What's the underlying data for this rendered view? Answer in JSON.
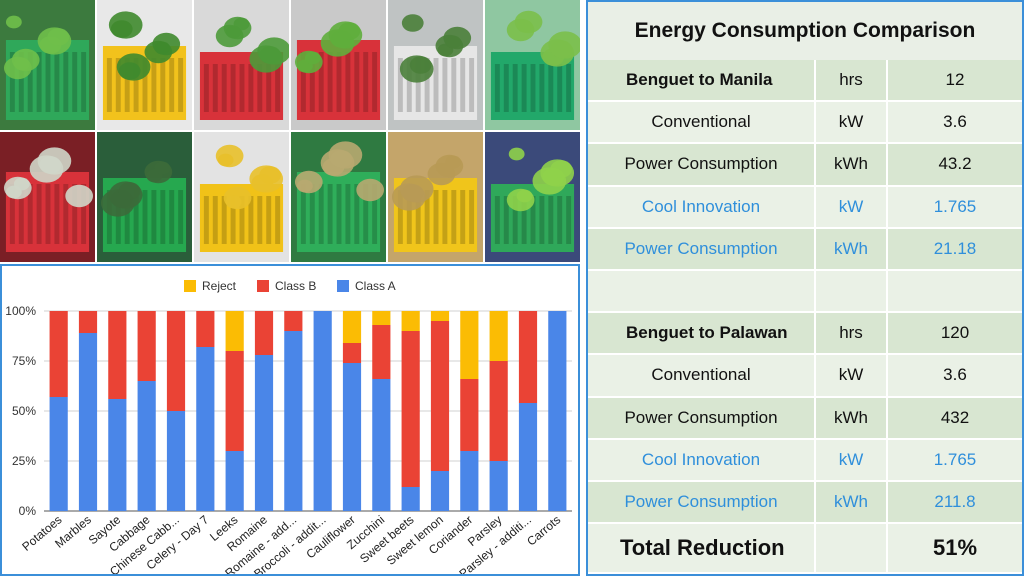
{
  "photos": [
    {
      "name": "mixed-greens",
      "bg": "#3c7a3e",
      "crate": "#2fa85a",
      "item": "#6fbf4a"
    },
    {
      "name": "leafy-in-yellow-crate",
      "bg": "#e8e8e8",
      "crate": "#f2c21c",
      "item": "#3f8a2e"
    },
    {
      "name": "greens-in-red-crate",
      "bg": "#d9d9d9",
      "crate": "#d8323a",
      "item": "#4c9a3a"
    },
    {
      "name": "wrapped-greens",
      "bg": "#c9c9c9",
      "crate": "#d8323a",
      "item": "#5fae3c"
    },
    {
      "name": "beans-in-bag",
      "bg": "#bfc3c3",
      "crate": "#e6e6e6",
      "item": "#4a7f3a"
    },
    {
      "name": "celery-green-crate",
      "bg": "#8fc7a1",
      "crate": "#22a86a",
      "item": "#7bbf4a"
    },
    {
      "name": "cabbage-red-crates",
      "bg": "#7a1f25",
      "crate": "#d8323a",
      "item": "#cfd6c9"
    },
    {
      "name": "broccoli-green-crate",
      "bg": "#2a5e3a",
      "crate": "#26a84f",
      "item": "#3c6a3a"
    },
    {
      "name": "lemons-yellow-crate",
      "bg": "#e3e3e3",
      "crate": "#f1c218",
      "item": "#e8c02a"
    },
    {
      "name": "marbles-green-crate",
      "bg": "#2f7a41",
      "crate": "#2fae5a",
      "item": "#b8a870"
    },
    {
      "name": "packed-yellow-crate",
      "bg": "#c4a56a",
      "crate": "#f0c51b",
      "item": "#b89a55"
    },
    {
      "name": "sayote-in-hand",
      "bg": "#3b4a7a",
      "crate": "#2fa85a",
      "item": "#8fd14a"
    }
  ],
  "chart_data": {
    "type": "bar",
    "stacked": true,
    "categories": [
      "Potatoes",
      "Marbles",
      "Sayote",
      "Cabbage",
      "Chinese Cabb...",
      "Celery - Day 7",
      "Leeks",
      "Romaine",
      "Romaine - add...",
      "Broccoli - addit...",
      "Cauliflower",
      "Zucchini",
      "Sweet beets",
      "Sweet lemon",
      "Coriander",
      "Parsley",
      "Parsley - additi...",
      "Carrots"
    ],
    "series": [
      {
        "name": "Class A",
        "color": "#4a86e8",
        "values": [
          57,
          89,
          56,
          65,
          50,
          82,
          30,
          78,
          90,
          100,
          74,
          66,
          12,
          20,
          30,
          25,
          54,
          100
        ]
      },
      {
        "name": "Class B",
        "color": "#ea4335",
        "values": [
          43,
          11,
          44,
          35,
          50,
          18,
          50,
          22,
          10,
          0,
          10,
          27,
          78,
          75,
          36,
          50,
          46,
          0
        ]
      },
      {
        "name": "Reject",
        "color": "#fbbc04",
        "values": [
          0,
          0,
          0,
          0,
          0,
          0,
          20,
          0,
          0,
          0,
          16,
          7,
          10,
          5,
          34,
          25,
          0,
          0
        ]
      }
    ],
    "legend_order": [
      "Reject",
      "Class B",
      "Class A"
    ],
    "yticks": [
      "0%",
      "25%",
      "50%",
      "75%",
      "100%"
    ],
    "ylim": [
      0,
      100
    ],
    "legend_position": "top",
    "grid": true
  },
  "table": {
    "title": "Energy Consumption Comparison",
    "rows": [
      {
        "style": "dark",
        "lead": true,
        "label": "Benguet to Manila",
        "unit": "hrs",
        "value": "12"
      },
      {
        "style": "light",
        "label": "Conventional",
        "unit": "kW",
        "value": "3.6"
      },
      {
        "style": "dark",
        "label": "Power Consumption",
        "unit": "kWh",
        "value": "43.2"
      },
      {
        "style": "light blue",
        "label": "Cool Innovation",
        "unit": "kW",
        "value": "1.765"
      },
      {
        "style": "dark blue",
        "label": "Power Consumption",
        "unit": "kWh",
        "value": "21.18"
      },
      {
        "style": "light",
        "label": "",
        "unit": "",
        "value": ""
      },
      {
        "style": "dark",
        "lead": true,
        "label": "Benguet to Palawan",
        "unit": "hrs",
        "value": "120"
      },
      {
        "style": "light",
        "label": "Conventional",
        "unit": "kW",
        "value": "3.6"
      },
      {
        "style": "dark",
        "label": "Power Consumption",
        "unit": "kWh",
        "value": "432"
      },
      {
        "style": "light blue",
        "label": "Cool Innovation",
        "unit": "kW",
        "value": "1.765"
      },
      {
        "style": "dark blue",
        "label": "Power Consumption",
        "unit": "kWh",
        "value": "211.8"
      },
      {
        "style": "light big",
        "label": "Total Reduction",
        "unit": "",
        "value": "51%"
      }
    ]
  }
}
